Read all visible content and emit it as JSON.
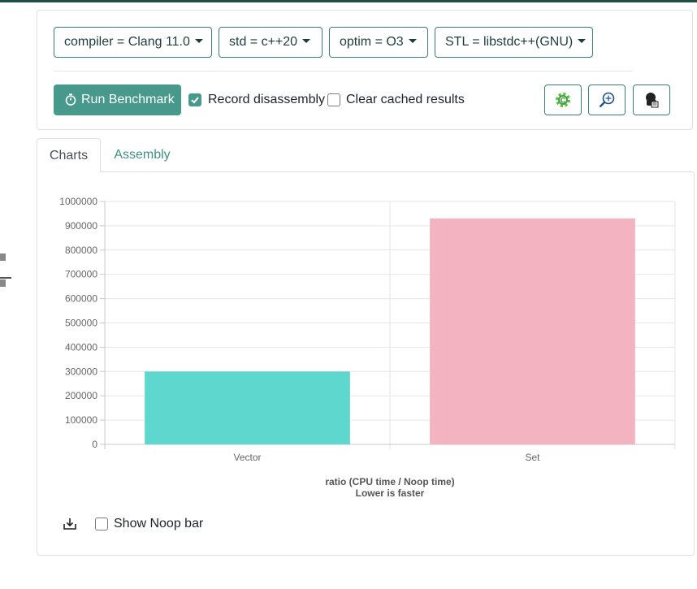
{
  "controls": {
    "compiler": "compiler = Clang 11.0",
    "std": "std = c++20",
    "optim": "optim = O3",
    "stl": "STL = libstdc++(GNU)",
    "run_label": "Run Benchmark",
    "record_disassembly": {
      "label": "Record disassembly",
      "checked": true
    },
    "clear_cache": {
      "label": "Clear cached results",
      "checked": false
    }
  },
  "tabs": [
    {
      "label": "Charts",
      "active": true
    },
    {
      "label": "Assembly",
      "active": false
    }
  ],
  "options": {
    "show_noop": {
      "label": "Show Noop bar",
      "checked": false
    }
  },
  "icons": [
    "stopwatch-icon",
    "check-icon",
    "gear-icon",
    "zoom-compare-icon",
    "share-icon",
    "download-icon"
  ],
  "colors": {
    "accent": "#46998b",
    "bar_vector": "#5ed8ce",
    "bar_set": "#f4b3c0"
  },
  "chart_data": {
    "type": "bar",
    "categories": [
      "Vector",
      "Set"
    ],
    "values": [
      300000,
      930000
    ],
    "title": "",
    "xlabel_line1": "ratio (CPU time / Noop time)",
    "xlabel_line2": "Lower is faster",
    "ylabel": "",
    "ylim": [
      0,
      1000000
    ],
    "yticks": [
      0,
      100000,
      200000,
      300000,
      400000,
      500000,
      600000,
      700000,
      800000,
      900000,
      1000000
    ],
    "grid": true,
    "legend": "none"
  }
}
